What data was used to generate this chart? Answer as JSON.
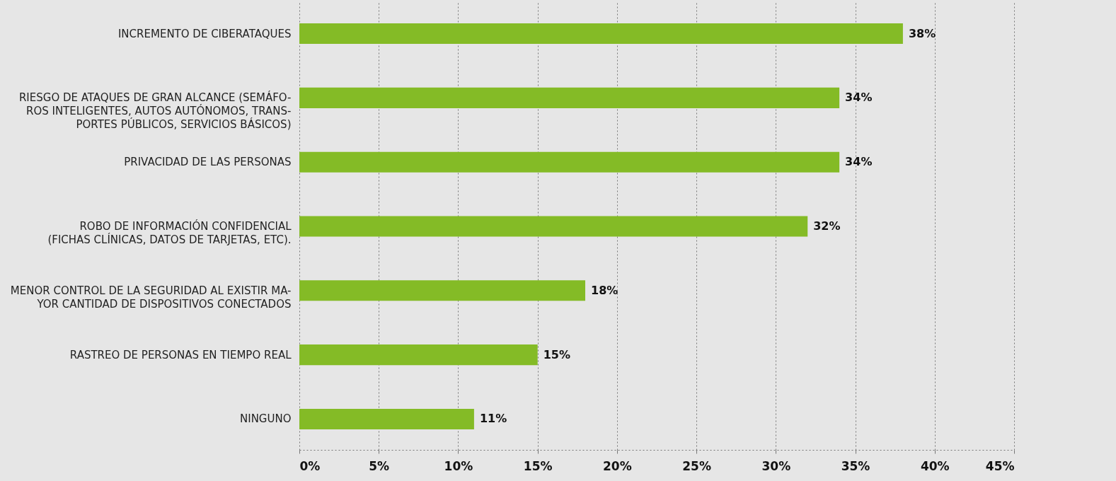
{
  "chart_data": {
    "type": "bar",
    "orientation": "horizontal",
    "categories": [
      "INCREMENTO DE CIBERATAQUES",
      "RIESGO DE ATAQUES DE GRAN ALCANCE (SEMÁFO-\nROS INTELIGENTES, AUTOS AUTÓNOMOS, TRANS-\nPORTES PÚBLICOS, SERVICIOS BÁSICOS)",
      "PRIVACIDAD DE LAS PERSONAS",
      "ROBO DE INFORMACIÓN CONFIDENCIAL\n(FICHAS CLÍNICAS, DATOS DE TARJETAS, ETC).",
      "MENOR CONTROL DE LA SEGURIDAD AL EXISTIR MA-\nYOR CANTIDAD DE DISPOSITIVOS CONECTADOS",
      "RASTREO DE PERSONAS EN TIEMPO REAL",
      "NINGUNO"
    ],
    "values": [
      38,
      34,
      34,
      32,
      18,
      15,
      11
    ],
    "value_labels": [
      "38%",
      "34%",
      "34%",
      "32%",
      "18%",
      "15%",
      "11%"
    ],
    "color": "#84bb26",
    "xlim": [
      0,
      45
    ],
    "xticks": [
      {
        "value": 0,
        "label": "0%"
      },
      {
        "value": 5,
        "label": "5%"
      },
      {
        "value": 10,
        "label": "10%"
      },
      {
        "value": 15,
        "label": "15%"
      },
      {
        "value": 20,
        "label": "20%"
      },
      {
        "value": 25,
        "label": "25%"
      },
      {
        "value": 30,
        "label": "30%"
      },
      {
        "value": 35,
        "label": "35%"
      },
      {
        "value": 40,
        "label": "40%"
      },
      {
        "value": 45,
        "label": "45%"
      }
    ],
    "grid": "x"
  }
}
